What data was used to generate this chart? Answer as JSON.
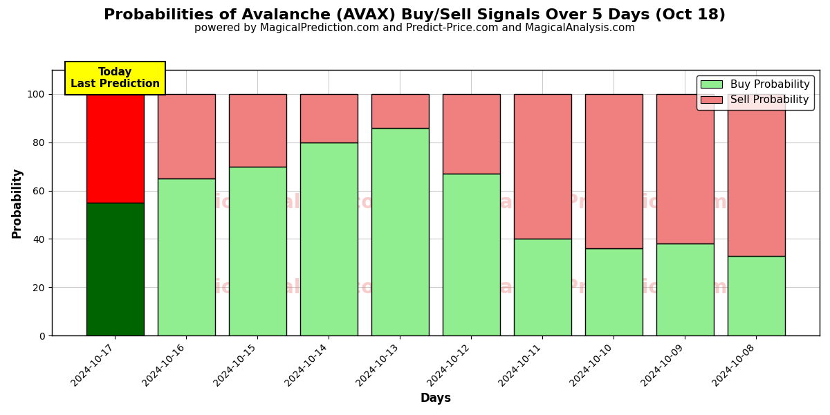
{
  "title": "Probabilities of Avalanche (AVAX) Buy/Sell Signals Over 5 Days (Oct 18)",
  "subtitle": "powered by MagicalPrediction.com and Predict-Price.com and MagicalAnalysis.com",
  "xlabel": "Days",
  "ylabel": "Probability",
  "dates": [
    "2024-10-17",
    "2024-10-16",
    "2024-10-15",
    "2024-10-14",
    "2024-10-13",
    "2024-10-12",
    "2024-10-11",
    "2024-10-10",
    "2024-10-09",
    "2024-10-08"
  ],
  "buy_values": [
    55,
    65,
    70,
    80,
    86,
    67,
    40,
    36,
    38,
    33
  ],
  "sell_values": [
    45,
    35,
    30,
    20,
    14,
    33,
    60,
    64,
    62,
    67
  ],
  "today_bar_buy_color": "#006400",
  "today_bar_sell_color": "#FF0000",
  "regular_bar_buy_color": "#90EE90",
  "regular_bar_sell_color": "#F08080",
  "legend_buy_color": "#90EE90",
  "legend_sell_color": "#F08080",
  "bar_edge_color": "#000000",
  "bar_edge_width": 1.0,
  "ylim_max": 110,
  "yticks": [
    0,
    20,
    40,
    60,
    80,
    100
  ],
  "dashed_line_y": 110,
  "watermark_color": "#F08080",
  "watermark_alpha": 0.4,
  "grid_color": "#cccccc",
  "grid_linewidth": 0.8,
  "annotation_text": "Today\nLast Prediction",
  "annotation_bg_color": "#FFFF00",
  "annotation_fontsize": 11,
  "title_fontsize": 16,
  "subtitle_fontsize": 11,
  "legend_fontsize": 11,
  "axis_label_fontsize": 12,
  "tick_label_fontsize": 10
}
